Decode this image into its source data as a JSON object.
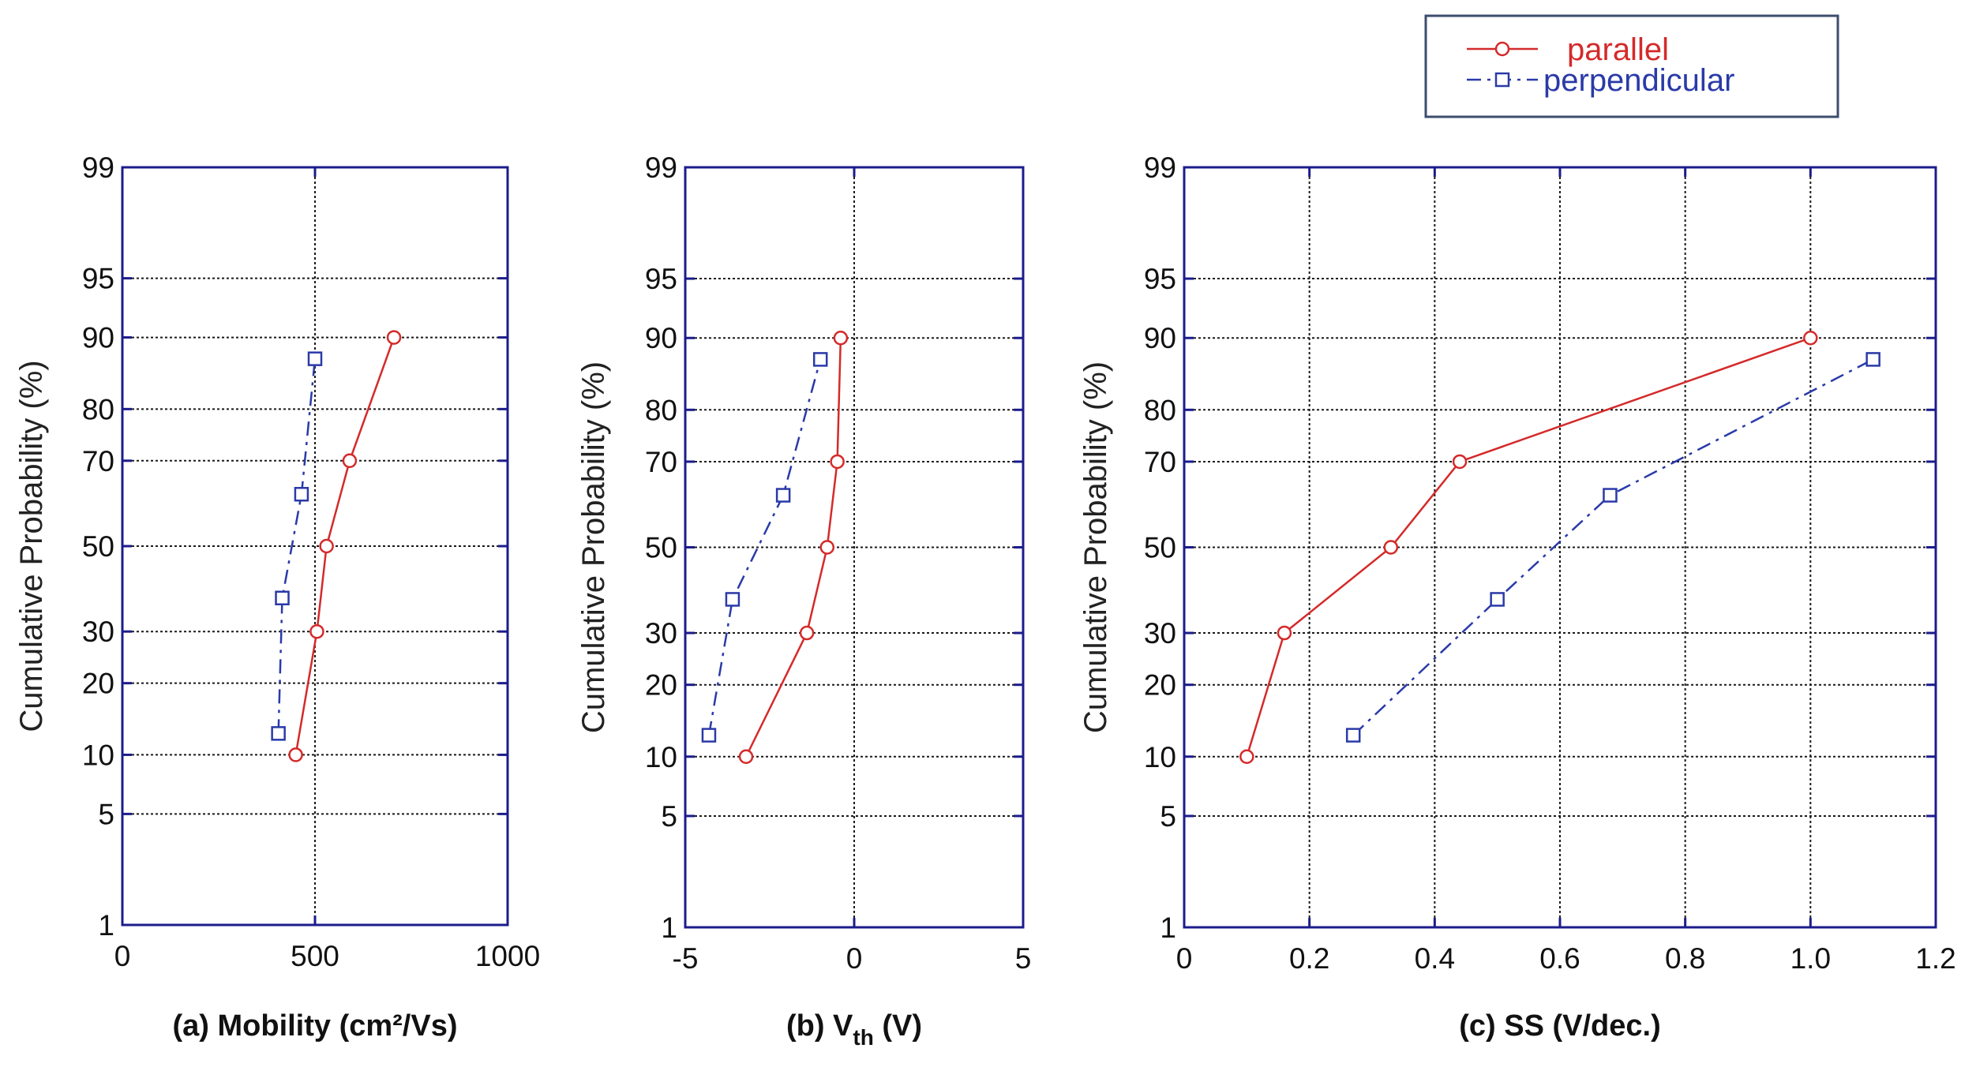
{
  "colors": {
    "axis": "#1c1c8c",
    "grid": "#1a1a1a",
    "parallel": "#d42a2a",
    "perpendicular": "#2a3aa8",
    "background": "#ffffff"
  },
  "chart_data": [
    {
      "type": "line",
      "panel": "a",
      "title": "",
      "xlabel": "(a) Mobility (cm²/Vs)",
      "ylabel": "Cumulative Probability (%)",
      "xlim": [
        0,
        1000
      ],
      "xticks": [
        0,
        500,
        1000
      ],
      "xtick_labels": [
        "0",
        "500",
        "1000"
      ],
      "ylim": [
        1,
        99
      ],
      "yscale": "normal-probability",
      "yticks": [
        1,
        5,
        10,
        20,
        30,
        50,
        70,
        80,
        90,
        95,
        99
      ],
      "ytick_labels": [
        "1",
        "5",
        "10",
        "20",
        "30",
        "50",
        "70",
        "80",
        "90",
        "95",
        "99"
      ],
      "grid": true,
      "series": [
        {
          "name": "parallel",
          "marker": "circle",
          "linestyle": "solid",
          "x": [
            450,
            505,
            530,
            590,
            705
          ],
          "y": [
            10,
            30,
            50,
            70,
            90
          ]
        },
        {
          "name": "perpendicular",
          "marker": "square",
          "linestyle": "dashdot",
          "x": [
            405,
            415,
            465,
            500
          ],
          "y": [
            12.5,
            37.5,
            62.5,
            87.5
          ]
        }
      ]
    },
    {
      "type": "line",
      "panel": "b",
      "title": "",
      "xlabel": "(b) V",
      "xlabel_subscript": "th",
      "xlabel_suffix": " (V)",
      "ylabel": "Cumulative Probability  (%)",
      "xlim": [
        -5,
        5
      ],
      "xticks": [
        -5,
        0,
        5
      ],
      "xtick_labels": [
        "-5",
        "0",
        "5"
      ],
      "ylim": [
        1,
        99
      ],
      "yscale": "normal-probability",
      "yticks": [
        1,
        5,
        10,
        20,
        30,
        50,
        70,
        80,
        90,
        95,
        99
      ],
      "ytick_labels": [
        "1",
        "5",
        "10",
        "20",
        "30",
        "50",
        "70",
        "80",
        "90",
        "95",
        "99"
      ],
      "grid": true,
      "series": [
        {
          "name": "parallel",
          "marker": "circle",
          "linestyle": "solid",
          "x": [
            -3.2,
            -1.4,
            -0.8,
            -0.5,
            -0.4
          ],
          "y": [
            10,
            30,
            50,
            70,
            90
          ]
        },
        {
          "name": "perpendicular",
          "marker": "square",
          "linestyle": "dashdot",
          "x": [
            -4.3,
            -3.6,
            -2.1,
            -1.0
          ],
          "y": [
            12.5,
            37.5,
            62.5,
            87.5
          ]
        }
      ]
    },
    {
      "type": "line",
      "panel": "c",
      "title": "",
      "xlabel": "(c) SS (V/dec.)",
      "ylabel": "Cumulative Probability  (%)",
      "xlim": [
        0,
        1.2
      ],
      "xticks": [
        0,
        0.2,
        0.4,
        0.6,
        0.8,
        1.0,
        1.2
      ],
      "xtick_labels": [
        "0",
        "0.2",
        "0.4",
        "0.6",
        "0.8",
        "1.0",
        "1.2"
      ],
      "ylim": [
        1,
        99
      ],
      "yscale": "normal-probability",
      "yticks": [
        1,
        5,
        10,
        20,
        30,
        50,
        70,
        80,
        90,
        95,
        99
      ],
      "ytick_labels": [
        "1",
        "5",
        "10",
        "20",
        "30",
        "50",
        "70",
        "80",
        "90",
        "95",
        "99"
      ],
      "grid": true,
      "series": [
        {
          "name": "parallel",
          "marker": "circle",
          "linestyle": "solid",
          "x": [
            0.1,
            0.16,
            0.33,
            0.44,
            1.0
          ],
          "y": [
            10,
            30,
            50,
            70,
            90
          ]
        },
        {
          "name": "perpendicular",
          "marker": "square",
          "linestyle": "dashdot",
          "x": [
            0.27,
            0.5,
            0.68,
            1.1
          ],
          "y": [
            12.5,
            37.5,
            62.5,
            87.5
          ]
        }
      ]
    }
  ],
  "legend": {
    "position": "top-right",
    "entries": [
      {
        "label": "parallel",
        "series": "parallel"
      },
      {
        "label": "perpendicular",
        "series": "perpendicular"
      }
    ]
  }
}
